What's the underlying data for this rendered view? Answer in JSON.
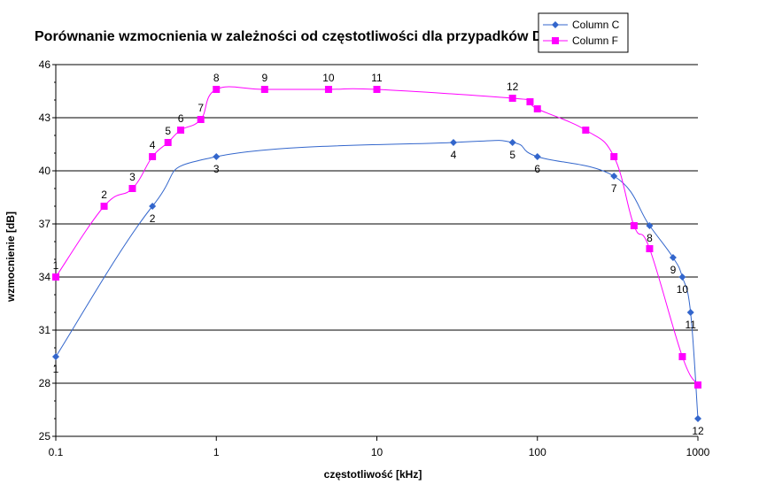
{
  "chart_data": {
    "type": "line",
    "title": "Porównanie wzmocnienia w zależności od częstotliwości dla przypadków D",
    "xlabel": "częstotliwość [kHz]",
    "ylabel": "wzmocnienie [dB]",
    "x_scale": "log",
    "xlim": [
      0.1,
      1000
    ],
    "ylim": [
      25,
      46
    ],
    "x_ticks": [
      0.1,
      1,
      10,
      100,
      1000
    ],
    "x_tick_labels": [
      "0.1",
      "1",
      "10",
      "100",
      "1000"
    ],
    "y_ticks": [
      25,
      28,
      31,
      34,
      37,
      40,
      43,
      46
    ],
    "y_tick_labels": [
      "25",
      "28",
      "31",
      "34",
      "37",
      "40",
      "43",
      "46"
    ],
    "grid": "horizontal",
    "legend_position": "top-right",
    "series": [
      {
        "name": "Column C",
        "color": "#3366cc",
        "marker": "diamond",
        "points": [
          {
            "x": 0.1,
            "y": 29.5,
            "label": "1"
          },
          {
            "x": 0.4,
            "y": 38.0,
            "label": "2"
          },
          {
            "x": 1,
            "y": 40.8,
            "label": "3"
          },
          {
            "x": 30,
            "y": 41.6,
            "label": "4"
          },
          {
            "x": 70,
            "y": 41.6,
            "label": "5"
          },
          {
            "x": 100,
            "y": 40.8,
            "label": "6"
          },
          {
            "x": 300,
            "y": 39.7,
            "label": "7"
          },
          {
            "x": 500,
            "y": 36.9,
            "label": "8"
          },
          {
            "x": 700,
            "y": 35.1,
            "label": "9"
          },
          {
            "x": 800,
            "y": 34.0,
            "label": "10"
          },
          {
            "x": 900,
            "y": 32.0,
            "label": "11"
          },
          {
            "x": 1000,
            "y": 26.0,
            "label": "12"
          }
        ]
      },
      {
        "name": "Column F",
        "color": "#ff00ff",
        "marker": "square",
        "points": [
          {
            "x": 0.1,
            "y": 34.0,
            "label": "1"
          },
          {
            "x": 0.2,
            "y": 38.0,
            "label": "2"
          },
          {
            "x": 0.3,
            "y": 39.0,
            "label": "3"
          },
          {
            "x": 0.4,
            "y": 40.8,
            "label": "4"
          },
          {
            "x": 0.5,
            "y": 41.6,
            "label": "5"
          },
          {
            "x": 0.6,
            "y": 42.3,
            "label": "6"
          },
          {
            "x": 0.8,
            "y": 42.9,
            "label": "7"
          },
          {
            "x": 1,
            "y": 44.6,
            "label": "8"
          },
          {
            "x": 2,
            "y": 44.6,
            "label": "9"
          },
          {
            "x": 5,
            "y": 44.6,
            "label": "10"
          },
          {
            "x": 10,
            "y": 44.6,
            "label": "11"
          },
          {
            "x": 70,
            "y": 44.1,
            "label": "12"
          },
          {
            "x": 90,
            "y": 43.9,
            "label": ""
          },
          {
            "x": 100,
            "y": 43.5,
            "label": ""
          },
          {
            "x": 200,
            "y": 42.3,
            "label": ""
          },
          {
            "x": 300,
            "y": 40.8,
            "label": ""
          },
          {
            "x": 400,
            "y": 36.9,
            "label": ""
          },
          {
            "x": 500,
            "y": 35.6,
            "label": ""
          },
          {
            "x": 800,
            "y": 29.5,
            "label": ""
          },
          {
            "x": 1000,
            "y": 27.9,
            "label": ""
          }
        ]
      }
    ]
  }
}
